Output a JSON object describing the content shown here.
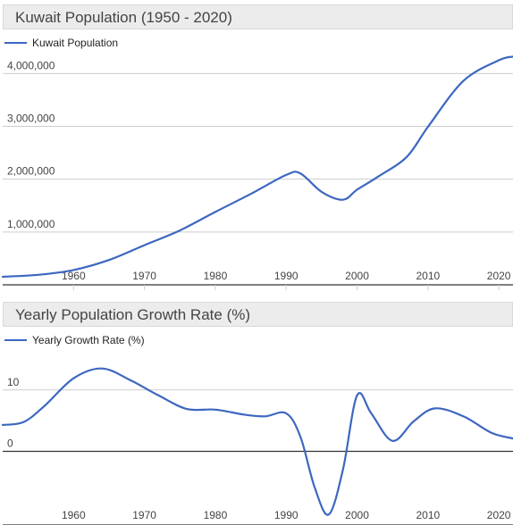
{
  "colors": {
    "series": "#3d67c0",
    "grid": "#cccccc",
    "baseline": "#333333"
  },
  "charts": [
    {
      "header": {
        "title": "Kuwait Population (1950 - 2020)"
      },
      "legend": {
        "label": "Kuwait Population"
      }
    },
    {
      "header": {
        "title": "Yearly Population Growth Rate (%)"
      },
      "legend": {
        "label": "Yearly Growth Rate (%)"
      }
    }
  ],
  "chart_data": [
    {
      "type": "line",
      "title": "Kuwait Population (1950 - 2020)",
      "series": [
        {
          "name": "Kuwait Population",
          "x": [
            1950,
            1955,
            1960,
            1965,
            1970,
            1975,
            1980,
            1985,
            1990,
            1992,
            1995,
            1998,
            2000,
            2003,
            2007,
            2010,
            2015,
            2020,
            2022
          ],
          "values": [
            152000,
            190000,
            280000,
            470000,
            750000,
            1030000,
            1380000,
            1720000,
            2080000,
            2110000,
            1760000,
            1610000,
            1800000,
            2050000,
            2420000,
            2990000,
            3860000,
            4250000,
            4320000
          ]
        }
      ],
      "x_ticks": [
        "1960",
        "1970",
        "1980",
        "1990",
        "2000",
        "2010",
        "2020"
      ],
      "y_ticks": [
        "1,000,000",
        "2,000,000",
        "3,000,000",
        "4,000,000"
      ],
      "xlim": [
        1950,
        2022
      ],
      "ylim": [
        0,
        4800000
      ],
      "grid": true,
      "legend_position": "top-left"
    },
    {
      "type": "line",
      "title": "Yearly Population Growth Rate (%)",
      "series": [
        {
          "name": "Yearly Growth Rate (%)",
          "x": [
            1950,
            1953,
            1956,
            1960,
            1964,
            1968,
            1972,
            1976,
            1980,
            1984,
            1987,
            1990,
            1992,
            1994,
            1996,
            1998,
            2000,
            2002,
            2005,
            2008,
            2011,
            2015,
            2019,
            2022
          ],
          "values": [
            4.3,
            4.8,
            7.5,
            11.9,
            13.5,
            11.6,
            9.1,
            6.9,
            6.8,
            6.0,
            5.7,
            6.2,
            2.4,
            -5.8,
            -10.3,
            -3.0,
            9.1,
            6.2,
            1.7,
            4.9,
            7.0,
            5.7,
            3.0,
            2.1
          ]
        }
      ],
      "x_ticks": [
        "1960",
        "1970",
        "1980",
        "1990",
        "2000",
        "2010",
        "2020"
      ],
      "y_ticks": [
        "0",
        "10"
      ],
      "xlim": [
        1950,
        2022
      ],
      "ylim": [
        -12,
        20
      ],
      "grid": true,
      "legend_position": "top-left"
    }
  ]
}
